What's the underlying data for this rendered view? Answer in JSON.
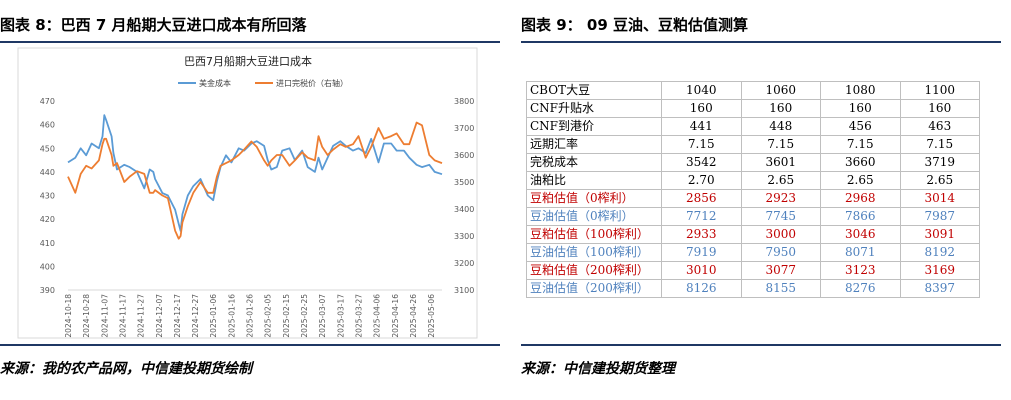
{
  "left": {
    "figure_title": "图表 8：巴西 7 月船期大豆进口成本有所回落",
    "source": "来源：我的农产品网，中信建投期货绘制"
  },
  "right": {
    "figure_title": "图表 9：  09 豆油、豆粕估值测算",
    "source": "来源：中信建投期货整理",
    "table": {
      "rows": [
        {
          "label": "CBOT大豆",
          "values": [
            "1040",
            "1060",
            "1080",
            "1100"
          ],
          "color": "black"
        },
        {
          "label": "CNF升贴水",
          "values": [
            "160",
            "160",
            "160",
            "160"
          ],
          "color": "black"
        },
        {
          "label": "CNF到港价",
          "values": [
            "441",
            "448",
            "456",
            "463"
          ],
          "color": "black"
        },
        {
          "label": "远期汇率",
          "values": [
            "7.15",
            "7.15",
            "7.15",
            "7.15"
          ],
          "color": "black"
        },
        {
          "label": "完税成本",
          "values": [
            "3542",
            "3601",
            "3660",
            "3719"
          ],
          "color": "black"
        },
        {
          "label": "油粕比",
          "values": [
            "2.70",
            "2.65",
            "2.65",
            "2.65"
          ],
          "color": "black"
        },
        {
          "label": "豆粕估值（0榨利）",
          "values": [
            "2856",
            "2923",
            "2968",
            "3014"
          ],
          "color": "red"
        },
        {
          "label": "豆油估值（0榨利）",
          "values": [
            "7712",
            "7745",
            "7866",
            "7987"
          ],
          "color": "blue"
        },
        {
          "label": "豆粕估值（100榨利）",
          "values": [
            "2933",
            "3000",
            "3046",
            "3091"
          ],
          "color": "red"
        },
        {
          "label": "豆油估值（100榨利）",
          "values": [
            "7919",
            "7950",
            "8071",
            "8192"
          ],
          "color": "blue"
        },
        {
          "label": "豆粕估值（200榨利）",
          "values": [
            "3010",
            "3077",
            "3123",
            "3169"
          ],
          "color": "red"
        },
        {
          "label": "豆油估值（200榨利）",
          "values": [
            "8126",
            "8155",
            "8276",
            "8397"
          ],
          "color": "blue"
        }
      ]
    }
  },
  "chart_data": {
    "type": "line",
    "title": "巴西7月船期大豆进口成本",
    "legend_position": "top",
    "grid": false,
    "x_tick_labels": [
      "2024-10-18",
      "2024-10-28",
      "2024-11-07",
      "2024-11-17",
      "2024-11-27",
      "2024-12-07",
      "2024-12-17",
      "2024-12-27",
      "2025-01-06",
      "2025-01-16",
      "2025-01-26",
      "2025-02-05",
      "2025-02-15",
      "2025-02-25",
      "2025-03-07",
      "2025-03-17",
      "2025-03-27",
      "2025-04-06",
      "2025-04-16",
      "2025-04-26",
      "2025-05-06"
    ],
    "y_left": {
      "ylim": [
        390,
        470
      ],
      "ticks": [
        "470",
        "460",
        "450",
        "440",
        "430",
        "420",
        "410",
        "400",
        "390"
      ]
    },
    "y_right": {
      "ylim": [
        3100,
        3800
      ],
      "ticks": [
        "3800",
        "3700",
        "3600",
        "3500",
        "3400",
        "3300",
        "3200",
        "3100"
      ],
      "label_note": "右轴"
    },
    "series": [
      {
        "name": "美金成本",
        "axis": "left",
        "color": "#5b9bd5",
        "x": [
          "2024-10-18",
          "2024-10-22",
          "2024-10-25",
          "2024-10-28",
          "2024-10-31",
          "2024-11-04",
          "2024-11-06",
          "2024-11-07",
          "2024-11-08",
          "2024-11-11",
          "2024-11-12",
          "2024-11-14",
          "2024-11-18",
          "2024-11-21",
          "2024-11-25",
          "2024-11-29",
          "2024-12-02",
          "2024-12-04",
          "2024-12-05",
          "2024-12-09",
          "2024-12-12",
          "2024-12-16",
          "2024-12-18",
          "2024-12-19",
          "2024-12-20",
          "2024-12-23",
          "2024-12-26",
          "2024-12-30",
          "2025-01-03",
          "2025-01-06",
          "2025-01-08",
          "2025-01-10",
          "2025-01-13",
          "2025-01-16",
          "2025-01-20",
          "2025-01-23",
          "2025-01-27",
          "2025-01-30",
          "2025-02-03",
          "2025-02-05",
          "2025-02-07",
          "2025-02-10",
          "2025-02-13",
          "2025-02-17",
          "2025-02-20",
          "2025-02-24",
          "2025-02-27",
          "2025-03-03",
          "2025-03-05",
          "2025-03-07",
          "2025-03-10",
          "2025-03-13",
          "2025-03-17",
          "2025-03-20",
          "2025-03-24",
          "2025-03-27",
          "2025-03-31",
          "2025-04-03",
          "2025-04-07",
          "2025-04-10",
          "2025-04-14",
          "2025-04-17",
          "2025-04-21",
          "2025-04-24",
          "2025-04-28",
          "2025-05-01",
          "2025-05-05",
          "2025-05-08",
          "2025-05-12"
        ],
        "y": [
          444,
          446,
          450,
          447,
          452,
          450,
          455,
          464,
          462,
          455,
          448,
          441,
          443,
          442,
          440,
          433,
          441,
          440,
          437,
          431,
          430,
          424,
          418,
          415,
          422,
          430,
          434,
          437,
          430,
          428,
          436,
          442,
          447,
          444,
          450,
          449,
          452,
          453,
          451,
          445,
          441,
          442,
          449,
          450,
          445,
          449,
          442,
          440,
          446,
          441,
          446,
          451,
          453,
          451,
          449,
          450,
          448,
          454,
          444,
          452,
          452,
          449,
          449,
          446,
          443,
          442,
          443,
          440,
          439
        ]
      },
      {
        "name": "进口完税价（右轴）",
        "axis": "right",
        "color": "#ed7d31",
        "x": [
          "2024-10-18",
          "2024-10-22",
          "2024-10-25",
          "2024-10-28",
          "2024-10-31",
          "2024-11-04",
          "2024-11-06",
          "2024-11-07",
          "2024-11-08",
          "2024-11-11",
          "2024-11-12",
          "2024-11-14",
          "2024-11-18",
          "2024-11-21",
          "2024-11-25",
          "2024-11-29",
          "2024-12-02",
          "2024-12-04",
          "2024-12-05",
          "2024-12-09",
          "2024-12-12",
          "2024-12-16",
          "2024-12-18",
          "2024-12-19",
          "2024-12-20",
          "2024-12-23",
          "2024-12-26",
          "2024-12-30",
          "2025-01-03",
          "2025-01-06",
          "2025-01-08",
          "2025-01-10",
          "2025-01-13",
          "2025-01-16",
          "2025-01-20",
          "2025-01-23",
          "2025-01-27",
          "2025-01-30",
          "2025-02-03",
          "2025-02-05",
          "2025-02-07",
          "2025-02-10",
          "2025-02-13",
          "2025-02-17",
          "2025-02-20",
          "2025-02-24",
          "2025-02-27",
          "2025-03-03",
          "2025-03-05",
          "2025-03-07",
          "2025-03-10",
          "2025-03-13",
          "2025-03-17",
          "2025-03-20",
          "2025-03-24",
          "2025-03-27",
          "2025-03-31",
          "2025-04-03",
          "2025-04-07",
          "2025-04-10",
          "2025-04-14",
          "2025-04-17",
          "2025-04-21",
          "2025-04-24",
          "2025-04-28",
          "2025-05-01",
          "2025-05-05",
          "2025-05-08",
          "2025-05-12"
        ],
        "y": [
          3520,
          3460,
          3530,
          3560,
          3550,
          3580,
          3640,
          3660,
          3660,
          3600,
          3560,
          3570,
          3500,
          3520,
          3540,
          3530,
          3460,
          3460,
          3470,
          3450,
          3440,
          3320,
          3290,
          3300,
          3350,
          3410,
          3460,
          3500,
          3460,
          3460,
          3520,
          3560,
          3570,
          3580,
          3600,
          3620,
          3650,
          3630,
          3580,
          3560,
          3580,
          3600,
          3600,
          3560,
          3580,
          3610,
          3590,
          3580,
          3670,
          3630,
          3600,
          3620,
          3640,
          3630,
          3640,
          3670,
          3590,
          3630,
          3700,
          3660,
          3670,
          3680,
          3640,
          3640,
          3720,
          3710,
          3600,
          3580,
          3570
        ]
      }
    ]
  }
}
